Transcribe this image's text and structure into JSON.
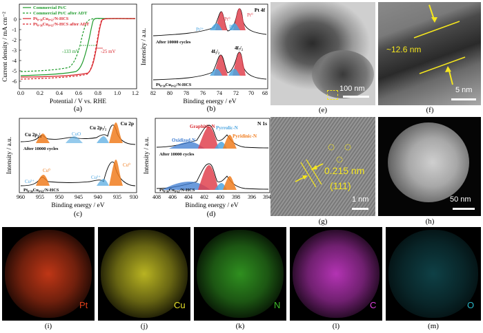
{
  "panel_a": {
    "caption": "(a)",
    "xlabel": "Potential / V vs. RHE",
    "ylabel": "Current density / mA cm⁻²",
    "xticks": [
      "0.0",
      "0.2",
      "0.4",
      "0.6",
      "0.8",
      "1.0",
      "1.2"
    ],
    "yticks": [
      "0",
      "-1",
      "-2",
      "-3",
      "-4",
      "-5",
      "-6"
    ],
    "legend": [
      "Commercial Pt/C",
      "Commercial Pt/C  after ADT",
      "Pt₀.₃₈Cu₀.₆₂/N-HCS",
      "Pt₀.₃₈Cu₀.₆₂/N-HCS  after ADT"
    ],
    "ann1": "-133 mV",
    "ann2": "-25 mV"
  },
  "panel_b": {
    "caption": "(b)",
    "title": "Pt 4f",
    "xlabel": "Binding energy / eV",
    "ylabel": "Intensity / a.u.",
    "xticks": [
      "82",
      "80",
      "78",
      "76",
      "74",
      "72",
      "70",
      "68"
    ],
    "top_label": "After 10000 cycles",
    "bottom_label": "Pt₀.₃₈Cu₀.₆₂/N-HCS",
    "pk1": "Pt²⁺",
    "pk2": "Pt⁰",
    "pk3": "Pt²⁺",
    "pk4": "Pt⁰",
    "lbl_52": "4f₅/₂",
    "lbl_72": "4f₇/₂"
  },
  "panel_c": {
    "caption": "(c)",
    "title": "Cu 2p",
    "xlabel": "Binding energy / eV",
    "ylabel": "Intensity / a.u.",
    "xticks": [
      "960",
      "955",
      "950",
      "945",
      "940",
      "935",
      "930"
    ],
    "top_label": "After 10000 cycles",
    "bottom_label": "Pt₀.₃₈Cu₀.₆₂/N-HCS",
    "l1": "Cu 2p₁/₂",
    "l2": "Cu 2p₃/₂",
    "l3": "CuO",
    "c1": "Cu²⁺",
    "c2": "Cu⁰",
    "c3": "Cu²⁺",
    "c4": "Cu⁰"
  },
  "panel_d": {
    "caption": "(d)",
    "title": "N 1s",
    "xlabel": "Binding energy / eV",
    "ylabel": "Intensity / a.u.",
    "xticks": [
      "408",
      "406",
      "404",
      "402",
      "400",
      "398",
      "396",
      "394"
    ],
    "top_label": "After 10000 cycles",
    "bottom_label": "Pt₀.₃₈Cu₀.₆₂/N-HCS",
    "graphitic": "Graphitic-N",
    "pyrrolic": "Pyrrolic-N",
    "oxidized": "Oxidized-N",
    "pyridinic": "Pyridinic-N"
  },
  "panel_e": {
    "caption": "(e)",
    "scale": "100 nm"
  },
  "panel_f": {
    "caption": "(f)",
    "scale": "5 nm",
    "thickness": "~12.6 nm"
  },
  "panel_g": {
    "caption": "(g)",
    "scale": "1 nm",
    "dspacing": "0.215 nm",
    "plane": "(111)"
  },
  "panel_h": {
    "caption": "(h)",
    "scale": "50 nm"
  },
  "eds": [
    {
      "caption": "(i)",
      "element": "Pt",
      "color": "#e0401a"
    },
    {
      "caption": "(j)",
      "element": "Cu",
      "color": "#e6e02a"
    },
    {
      "caption": "(k)",
      "element": "N",
      "color": "#3fbf2a"
    },
    {
      "caption": "(l)",
      "element": "C",
      "color": "#e040e0"
    },
    {
      "caption": "(m)",
      "element": "O",
      "color": "#2ab8c8"
    }
  ],
  "colors": {
    "green": "#1d9a2a",
    "red": "#d8232a",
    "pt0": "#e0424f",
    "pt2": "#4ea6e0",
    "cu0": "#f07c1e",
    "yellow": "#f5e61e"
  }
}
